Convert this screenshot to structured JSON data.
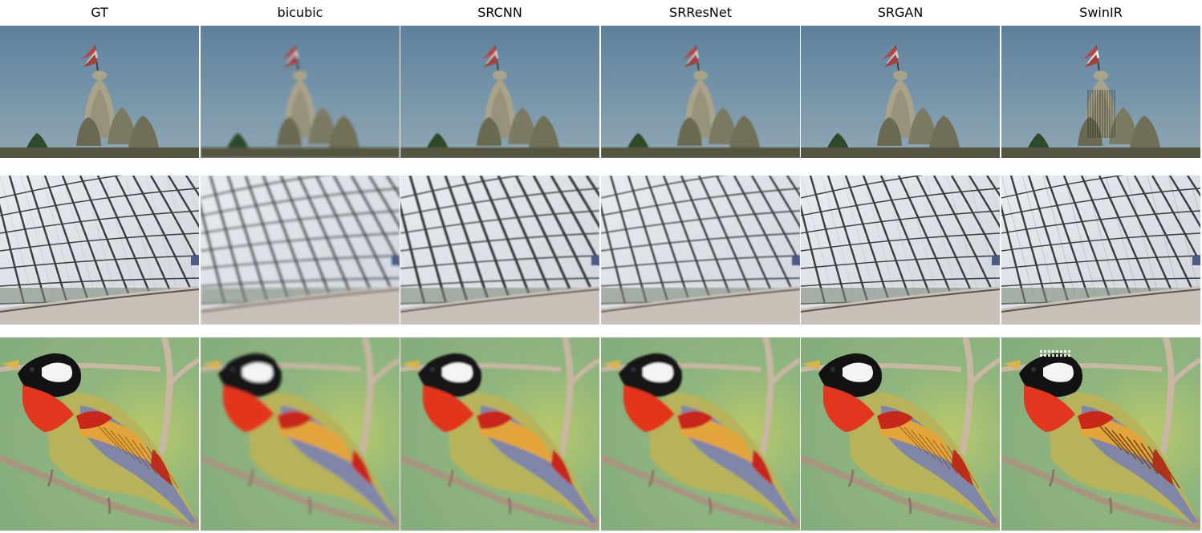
{
  "columns": [
    {
      "label": "GT",
      "style": "sharp"
    },
    {
      "label": "bicubic",
      "style": "blurry"
    },
    {
      "label": "SRCNN",
      "style": "medium"
    },
    {
      "label": "SRResNet",
      "style": "medium"
    },
    {
      "label": "SRGAN",
      "style": "sharp"
    },
    {
      "label": "SwinIR",
      "style": "artifact"
    }
  ],
  "rows": [
    {
      "scene": "temple",
      "subject": "temple-with-flag"
    },
    {
      "scene": "station",
      "subject": "glass-arched-station-roof"
    },
    {
      "scene": "bird",
      "subject": "colorful-bird-on-branch"
    }
  ],
  "colors": {
    "sky_top": "#5d819d",
    "sky_bottom": "#8fa7b4",
    "temple_stone": "#a9a489",
    "temple_dark": "#545440",
    "trees": "#2e4a2b",
    "glass": "#cfd5dc",
    "steel": "#3b3b3b",
    "platform": "#c9c0b8",
    "bird_bg": "#8fb67e",
    "bird_head": "#121212",
    "bird_cheek": "#f4f4f4",
    "bird_throat": "#e2361e",
    "bird_body": "#b6b35a",
    "bird_wing_blue": "#7f86a8",
    "bird_wing_red": "#c8281a",
    "bird_wing_gold": "#e3a53a",
    "branch": "#c9b6a3"
  }
}
